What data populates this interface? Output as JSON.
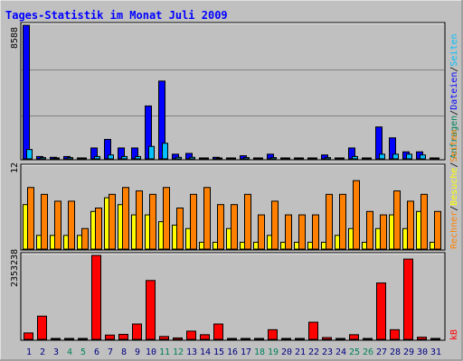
{
  "title": "Tages-Statistik im Monat Juli 2009",
  "colors": {
    "background": "#c0c0c0",
    "border_dark": "#808080",
    "title_color": "#0000ff",
    "panel_grid": "#808080",
    "hits": "#0000ff",
    "files": "#00c0ff",
    "pages": "#00c0ff",
    "visits": "#ffff00",
    "sites": "#ff8000",
    "kbytes": "#ff0000",
    "weekend_day": "#00805c",
    "weekday": "#000080"
  },
  "legend": {
    "top": [
      {
        "label": "Anfragen",
        "color": "#00805c"
      },
      {
        "sep": "/"
      },
      {
        "label": "Dateien",
        "color": "#0000ff"
      },
      {
        "sep": "/"
      },
      {
        "label": "Seiten",
        "color": "#00c0ff"
      }
    ],
    "middle": [
      {
        "label": "Rechner",
        "color": "#ff8000"
      },
      {
        "sep": "/"
      },
      {
        "label": "Besuche",
        "color": "#ffff00"
      },
      {
        "sep": "/"
      },
      {
        "label": "Seiten",
        "color": "#ff8000"
      }
    ],
    "bottom": [
      {
        "label": "kB",
        "color": "#ff0000"
      }
    ]
  },
  "chart_data": [
    {
      "type": "bar",
      "panel": "top",
      "ymax_label": "8588",
      "ylim": [
        0,
        8588
      ],
      "categories": [
        "1",
        "2",
        "3",
        "4",
        "5",
        "6",
        "7",
        "8",
        "9",
        "10",
        "11",
        "12",
        "13",
        "14",
        "15",
        "16",
        "17",
        "18",
        "19",
        "20",
        "21",
        "22",
        "23",
        "24",
        "25",
        "26",
        "27",
        "28",
        "29",
        "30",
        "31"
      ],
      "series": [
        {
          "name": "Anfragen",
          "values": [
            8588,
            150,
            100,
            150,
            60,
            700,
            1250,
            700,
            700,
            3400,
            5000,
            300,
            350,
            60,
            100,
            60,
            200,
            60,
            300,
            60,
            60,
            60,
            250,
            60,
            700,
            60,
            2050,
            1350,
            450,
            450,
            60
          ]
        },
        {
          "name": "Dateien",
          "values": [
            600,
            80,
            60,
            80,
            30,
            150,
            250,
            150,
            150,
            800,
            1000,
            100,
            100,
            30,
            50,
            30,
            80,
            30,
            80,
            30,
            30,
            30,
            80,
            30,
            150,
            30,
            300,
            300,
            300,
            250,
            30
          ]
        }
      ]
    },
    {
      "type": "bar",
      "panel": "middle",
      "ymax_label": "12",
      "ylim": [
        0,
        12
      ],
      "categories": [
        "1",
        "2",
        "3",
        "4",
        "5",
        "6",
        "7",
        "8",
        "9",
        "10",
        "11",
        "12",
        "13",
        "14",
        "15",
        "16",
        "17",
        "18",
        "19",
        "20",
        "21",
        "22",
        "23",
        "24",
        "25",
        "26",
        "27",
        "28",
        "29",
        "30",
        "31"
      ],
      "series": [
        {
          "name": "Seiten",
          "values": [
            6.5,
            2,
            2,
            2,
            2,
            5.5,
            7.5,
            6.5,
            5,
            5,
            4,
            3.5,
            3,
            1,
            1,
            3,
            1,
            1,
            2,
            1,
            1,
            1,
            1,
            2,
            3,
            1,
            3,
            5,
            3,
            5.5,
            1
          ]
        },
        {
          "name": "Rechner",
          "values": [
            9,
            8,
            7,
            7,
            3,
            6,
            8,
            9,
            8.5,
            8,
            9,
            6,
            8,
            9,
            6.5,
            6.5,
            8,
            5,
            7,
            5,
            5,
            5,
            8,
            8,
            10,
            5.5,
            5,
            8.5,
            7,
            8,
            5.5
          ]
        },
        {
          "name": "Besuche",
          "values": [
            6.5,
            2,
            2,
            2,
            2,
            5.5,
            7.5,
            6.5,
            5,
            5,
            4,
            3.5,
            3,
            1,
            1,
            3,
            1,
            1,
            2,
            1,
            1,
            1,
            1,
            2,
            3,
            1,
            3,
            5,
            3,
            5.5,
            1
          ]
        }
      ]
    },
    {
      "type": "bar",
      "panel": "bottom",
      "ymax_label": "2353238",
      "ylim": [
        0,
        2353238
      ],
      "categories": [
        "1",
        "2",
        "3",
        "4",
        "5",
        "6",
        "7",
        "8",
        "9",
        "10",
        "11",
        "12",
        "13",
        "14",
        "15",
        "16",
        "17",
        "18",
        "19",
        "20",
        "21",
        "22",
        "23",
        "24",
        "25",
        "26",
        "27",
        "28",
        "29",
        "30",
        "31"
      ],
      "series": [
        {
          "name": "kB",
          "values": [
            180000,
            650000,
            20000,
            20000,
            20000,
            2353238,
            120000,
            140000,
            430000,
            1650000,
            80000,
            40000,
            230000,
            130000,
            430000,
            20000,
            20000,
            20000,
            270000,
            20000,
            20000,
            480000,
            50000,
            20000,
            130000,
            20000,
            1580000,
            270000,
            2250000,
            60000,
            20000
          ]
        }
      ]
    }
  ],
  "weekend_days": [
    "4",
    "5",
    "11",
    "12",
    "18",
    "19",
    "25",
    "26"
  ]
}
